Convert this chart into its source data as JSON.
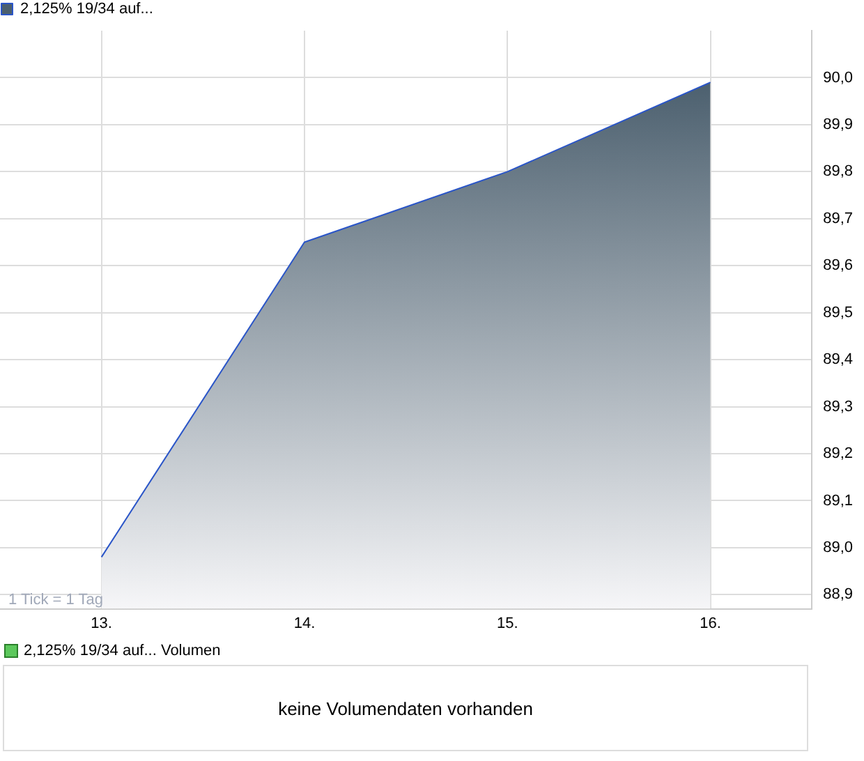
{
  "chart_data": {
    "type": "area",
    "x": [
      13,
      14,
      15,
      16
    ],
    "series": [
      {
        "name": "2,125% 19/34 auf...",
        "color": "#2a55c8",
        "values": [
          88.98,
          89.65,
          89.8,
          89.99
        ]
      }
    ],
    "xlim": [
      12.5,
      16.5
    ],
    "xticks": [
      {
        "value": 13,
        "label": "13."
      },
      {
        "value": 14,
        "label": "14."
      },
      {
        "value": 15,
        "label": "15."
      },
      {
        "value": 16,
        "label": "16."
      }
    ],
    "ylim": [
      88.87,
      90.1
    ],
    "yticks": [
      {
        "value": 88.9,
        "label": "88,9"
      },
      {
        "value": 89.0,
        "label": "89,0"
      },
      {
        "value": 89.1,
        "label": "89,1"
      },
      {
        "value": 89.2,
        "label": "89,2"
      },
      {
        "value": 89.3,
        "label": "89,3"
      },
      {
        "value": 89.4,
        "label": "89,4"
      },
      {
        "value": 89.5,
        "label": "89,5"
      },
      {
        "value": 89.6,
        "label": "89,6"
      },
      {
        "value": 89.7,
        "label": "89,7"
      },
      {
        "value": 89.8,
        "label": "89,8"
      },
      {
        "value": 89.9,
        "label": "89,9"
      },
      {
        "value": 90.0,
        "label": "90,0"
      }
    ],
    "grid": true,
    "legend": "top left",
    "marker": "none",
    "line_style": "solid",
    "annotations": [
      "1 Tick = 1 Tag",
      "2,125% 19/34 auf... Volumen",
      "keine Volumendaten vorhanden"
    ]
  }
}
